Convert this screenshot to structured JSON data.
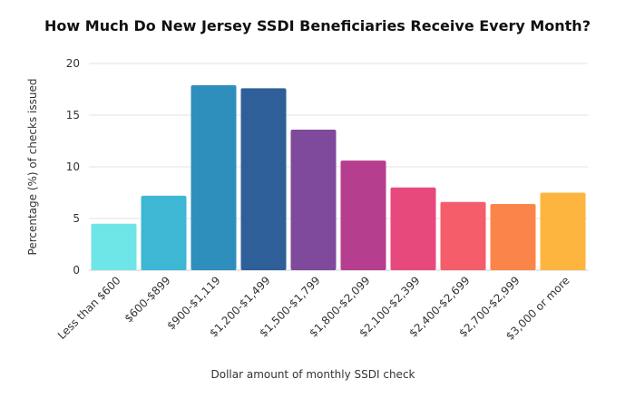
{
  "chart_data": {
    "type": "bar",
    "title": "How Much Do New Jersey SSDI Beneficiaries Receive Every Month?",
    "xlabel": "Dollar amount of monthly SSDI check",
    "ylabel": "Percentage (%) of checks issued",
    "ylim": [
      0,
      20
    ],
    "yticks": [
      0,
      5,
      10,
      15,
      20
    ],
    "grid": true,
    "categories": [
      "Less than $600",
      "$600-$899",
      "$900-$1,119",
      "$1,200-$1,499",
      "$1,500-$1,799",
      "$1,800-$2,099",
      "$2,100-$2,399",
      "$2,400-$2,699",
      "$2,700-$2,999",
      "$3,000 or more"
    ],
    "values": [
      4.5,
      7.2,
      17.9,
      17.6,
      13.6,
      10.6,
      8.0,
      6.6,
      6.4,
      7.5
    ],
    "colors": [
      "#6ee6e8",
      "#3eb7d4",
      "#2e8fbd",
      "#2e5f98",
      "#7f4a9c",
      "#b63e8f",
      "#e8497d",
      "#f55d6a",
      "#fb8448",
      "#fdb53f"
    ]
  }
}
